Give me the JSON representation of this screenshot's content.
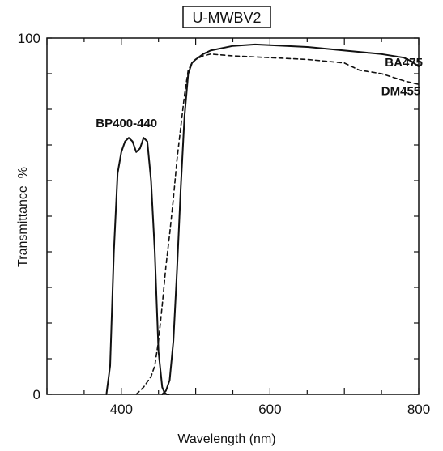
{
  "chart_data": {
    "type": "line",
    "title": "U-MWBV2",
    "xlabel": "Wavelength (nm)",
    "ylabel": "Transmittance  %",
    "xlim": [
      300,
      800
    ],
    "ylim": [
      0,
      100
    ],
    "x_tick_labels": [
      "400",
      "600",
      "800"
    ],
    "y_tick_labels": [
      "0",
      "100"
    ],
    "grid": false,
    "series": [
      {
        "name": "BP400-440",
        "style": "solid",
        "x": [
          380,
          385,
          390,
          395,
          400,
          405,
          410,
          415,
          420,
          425,
          430,
          435,
          440,
          445,
          450,
          455,
          458,
          461,
          464
        ],
        "y": [
          0,
          8,
          40,
          62,
          68,
          71,
          72,
          71,
          68,
          69,
          72,
          71,
          60,
          40,
          12,
          2,
          0.5,
          0,
          0
        ]
      },
      {
        "name": "DM455",
        "style": "dashed",
        "x": [
          420,
          430,
          440,
          445,
          450,
          455,
          460,
          465,
          470,
          475,
          480,
          485,
          490,
          495,
          500,
          510,
          520,
          550,
          600,
          650,
          700,
          720,
          750,
          780,
          800
        ],
        "y": [
          0,
          2,
          5,
          8,
          15,
          25,
          36,
          45,
          55,
          66,
          75,
          84,
          91,
          93,
          94,
          95,
          95.5,
          95,
          94.5,
          94,
          93,
          91,
          90,
          88,
          87
        ]
      },
      {
        "name": "BA475",
        "style": "solid",
        "x": [
          455,
          460,
          465,
          470,
          475,
          480,
          485,
          490,
          495,
          500,
          510,
          520,
          550,
          580,
          600,
          650,
          700,
          750,
          780,
          790,
          800
        ],
        "y": [
          0,
          1,
          4,
          15,
          35,
          58,
          78,
          90,
          93,
          94,
          95.5,
          96.5,
          97.8,
          98.2,
          98,
          97.5,
          96.5,
          95.5,
          94.5,
          93.5,
          92
        ]
      }
    ],
    "annotations": [
      {
        "text": "BP400-440",
        "x": 407,
        "y": 75
      },
      {
        "text": "BA475",
        "x": 780,
        "y": 92
      },
      {
        "text": "DM455",
        "x": 776,
        "y": 84
      }
    ],
    "colors": {
      "line": "#111111",
      "background": "#ffffff",
      "axis": "#111111"
    }
  }
}
